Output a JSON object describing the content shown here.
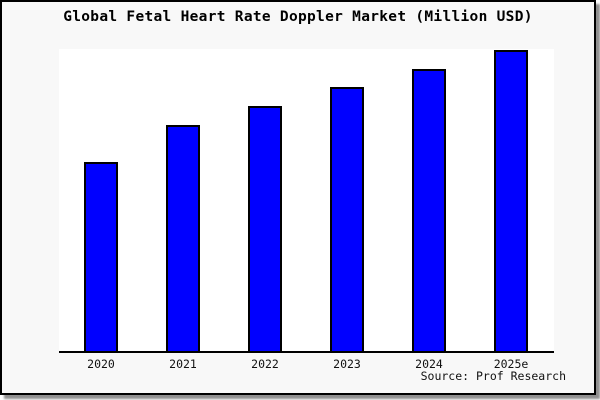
{
  "figure": {
    "title": "Global Fetal Heart Rate Doppler Market (Million USD)",
    "source": "Source: Prof Research"
  },
  "chart_data": {
    "type": "bar",
    "title": "Global Fetal Heart Rate Doppler Market (Million USD)",
    "categories": [
      "2020",
      "2021",
      "2022",
      "2023",
      "2024",
      "2025e"
    ],
    "values": [
      62.8,
      75.1,
      81.4,
      87.7,
      93.7,
      100
    ],
    "value_note": "relative index estimated from bar heights; no y-axis labels shown, 2025e normalized to 100",
    "xlabel": "",
    "ylabel": "",
    "ylim": [
      0,
      100
    ],
    "grid": false,
    "legend": null,
    "bar_color": "#0000ff",
    "bar_edge_color": "#000000",
    "source": "Source: Prof Research"
  },
  "colors": {
    "bar_fill": "#0000ff",
    "bar_edge": "#000000",
    "panel_background": "#f8f8f8",
    "plot_background": "#ffffff",
    "panel_border": "#000000",
    "shadow": "#8f8f8f"
  }
}
